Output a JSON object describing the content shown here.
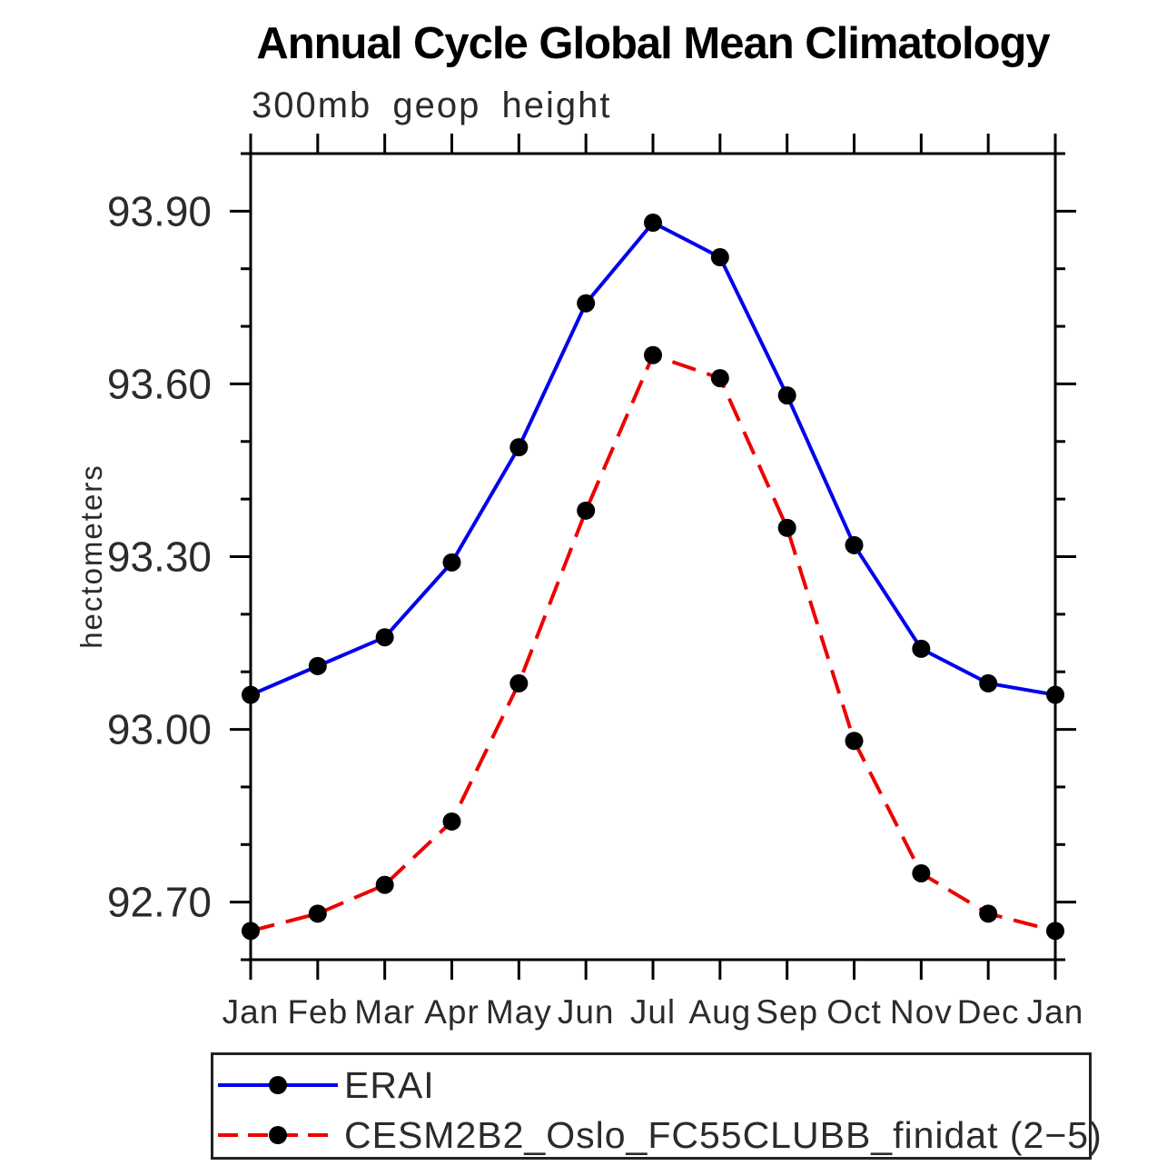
{
  "chart_data": {
    "type": "line",
    "title": "Annual Cycle Global Mean Climatology",
    "subtitle": "300mb geop height",
    "ylabel": "hectometers",
    "categories": [
      "Jan",
      "Feb",
      "Mar",
      "Apr",
      "May",
      "Jun",
      "Jul",
      "Aug",
      "Sep",
      "Oct",
      "Nov",
      "Dec",
      "Jan"
    ],
    "ylim": [
      92.6,
      94.0
    ],
    "ytick_major_labels": [
      "92.70",
      "93.00",
      "93.30",
      "93.60",
      "93.90"
    ],
    "ytick_major_values": [
      92.7,
      93.0,
      93.3,
      93.6,
      93.9
    ],
    "ytick_minor_step": 0.1,
    "grid": false,
    "legend_position": "bottom",
    "series": [
      {
        "id": "erai",
        "name": "ERAI",
        "line_color": "#0000ee",
        "line_style": "solid",
        "marker": "filled-circle",
        "marker_color": "#000000",
        "values": [
          93.06,
          93.11,
          93.16,
          93.29,
          93.49,
          93.74,
          93.88,
          93.82,
          93.58,
          93.32,
          93.14,
          93.08,
          93.06
        ]
      },
      {
        "id": "cesm",
        "name": "CESM2B2_Oslo_FC55CLUBB_finidat (2−5)",
        "line_color": "#ee0000",
        "line_style": "dashed",
        "marker": "filled-circle",
        "marker_color": "#000000",
        "values": [
          92.65,
          92.68,
          92.73,
          92.84,
          93.08,
          93.38,
          93.65,
          93.61,
          93.35,
          92.98,
          92.75,
          92.68,
          92.65
        ]
      }
    ],
    "axis_color": "#000000",
    "text_color": "#2b2b2b"
  }
}
